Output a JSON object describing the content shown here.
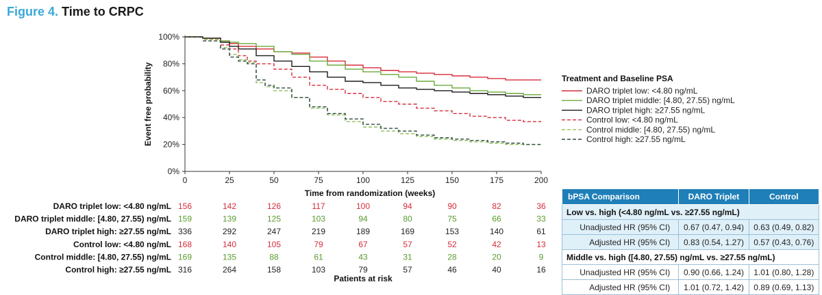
{
  "figure": {
    "number": "Figure 4.",
    "title": "Time to CRPC"
  },
  "chart_data": {
    "type": "line",
    "step": true,
    "xlabel": "Time from randomization (weeks)",
    "ylabel": "Event free probability",
    "xlim": [
      0,
      200
    ],
    "ylim": [
      0,
      100
    ],
    "xticks": [
      0,
      25,
      50,
      75,
      100,
      125,
      150,
      175,
      200
    ],
    "yticks": [
      0,
      20,
      40,
      60,
      80,
      100
    ],
    "ytick_labels": [
      "0%",
      "20%",
      "40%",
      "60%",
      "80%",
      "100%"
    ],
    "legend_title": "Treatment and Baseline PSA",
    "legend_position": "right",
    "series": [
      {
        "name": "DARO triplet low: <4.80 ng/mL",
        "color": "#d62b3a",
        "dash": "solid",
        "x": [
          0,
          10,
          20,
          25,
          30,
          40,
          50,
          60,
          70,
          80,
          90,
          100,
          110,
          120,
          130,
          140,
          150,
          160,
          170,
          180,
          190,
          200
        ],
        "y": [
          100,
          99,
          97,
          95,
          93,
          91,
          89,
          88,
          85,
          82,
          79,
          77,
          75,
          74,
          73,
          72,
          71,
          70,
          69,
          68,
          68,
          68
        ]
      },
      {
        "name": "DARO triplet middle: [4.80, 27.55) ng/mL",
        "color": "#6aaa3a",
        "dash": "solid",
        "x": [
          0,
          10,
          20,
          25,
          30,
          40,
          50,
          60,
          70,
          80,
          90,
          100,
          110,
          120,
          130,
          140,
          150,
          160,
          170,
          180,
          190,
          200
        ],
        "y": [
          100,
          99,
          97,
          96,
          95,
          93,
          89,
          87,
          82,
          79,
          76,
          74,
          72,
          70,
          67,
          64,
          62,
          60,
          59,
          58,
          57,
          57
        ]
      },
      {
        "name": "DARO triplet high: ≥27.55 ng/mL",
        "color": "#1a1a1a",
        "dash": "solid",
        "x": [
          0,
          10,
          20,
          25,
          30,
          40,
          50,
          60,
          70,
          80,
          90,
          100,
          110,
          120,
          130,
          140,
          150,
          160,
          170,
          180,
          190,
          200
        ],
        "y": [
          100,
          99,
          96,
          93,
          91,
          86,
          82,
          78,
          74,
          70,
          67,
          66,
          64,
          62,
          61,
          60,
          59,
          58,
          57,
          56,
          55,
          55
        ]
      },
      {
        "name": "Control low: <4.80 ng/mL",
        "color": "#d62b3a",
        "dash": "dashed",
        "x": [
          0,
          10,
          20,
          25,
          30,
          35,
          40,
          50,
          60,
          70,
          80,
          90,
          100,
          110,
          120,
          130,
          140,
          150,
          160,
          170,
          180,
          190,
          200
        ],
        "y": [
          100,
          98,
          94,
          91,
          86,
          82,
          80,
          76,
          70,
          64,
          61,
          58,
          55,
          52,
          50,
          47,
          45,
          43,
          41,
          40,
          38,
          37,
          37
        ]
      },
      {
        "name": "Control middle: [4.80, 27.55) ng/mL",
        "color": "#8fbe5a",
        "dash": "dashed",
        "x": [
          0,
          10,
          20,
          25,
          30,
          35,
          40,
          45,
          50,
          60,
          70,
          80,
          90,
          100,
          110,
          120,
          130,
          140,
          150,
          160,
          170,
          180,
          190,
          200
        ],
        "y": [
          100,
          98,
          92,
          87,
          83,
          81,
          66,
          63,
          60,
          55,
          47,
          42,
          37,
          33,
          30,
          28,
          26,
          24,
          23,
          22,
          21,
          20,
          20,
          19
        ]
      },
      {
        "name": "Control high: ≥27.55 ng/mL",
        "color": "#2a4a3a",
        "dash": "dashed",
        "x": [
          0,
          10,
          20,
          25,
          30,
          35,
          40,
          45,
          50,
          60,
          70,
          80,
          90,
          100,
          110,
          120,
          130,
          140,
          150,
          160,
          170,
          180,
          190,
          200
        ],
        "y": [
          100,
          97,
          91,
          85,
          82,
          80,
          68,
          64,
          62,
          55,
          48,
          43,
          39,
          35,
          32,
          30,
          27,
          25,
          24,
          23,
          22,
          21,
          20,
          20
        ]
      }
    ],
    "risk_table": {
      "title": "Patients at risk",
      "rows": [
        {
          "label": "DARO triplet low: <4.80 ng/mL",
          "color": "#d62b3a",
          "values": [
            "156",
            "142",
            "126",
            "117",
            "100",
            "94",
            "90",
            "82",
            "36"
          ]
        },
        {
          "label": "DARO triplet middle: [4.80, 27.55) ng/mL",
          "color": "#5a9a2e",
          "values": [
            "159",
            "139",
            "125",
            "103",
            "94",
            "80",
            "75",
            "66",
            "33"
          ]
        },
        {
          "label": "DARO triplet high: ≥27.55 ng/mL",
          "color": "#222222",
          "values": [
            "336",
            "292",
            "247",
            "219",
            "189",
            "169",
            "153",
            "140",
            "61"
          ]
        },
        {
          "label": "Control low: <4.80 ng/mL",
          "color": "#d62b3a",
          "values": [
            "168",
            "140",
            "105",
            "79",
            "67",
            "57",
            "52",
            "42",
            "13"
          ]
        },
        {
          "label": "Control middle: [4.80, 27.55) ng/mL",
          "color": "#5a9a2e",
          "values": [
            "169",
            "135",
            "88",
            "61",
            "43",
            "31",
            "28",
            "20",
            "9"
          ]
        },
        {
          "label": "Control high: ≥27.55 ng/mL",
          "color": "#222222",
          "values": [
            "316",
            "264",
            "158",
            "103",
            "79",
            "57",
            "46",
            "40",
            "16"
          ]
        }
      ]
    }
  },
  "bpsa_table": {
    "headers": [
      "bPSA Comparison",
      "DARO Triplet",
      "Control"
    ],
    "groups": [
      {
        "title": "Low vs. high (<4.80 ng/mL vs. ≥27.55 ng/mL)",
        "rows": [
          {
            "label": "Unadjusted HR (95% CI)",
            "daro": "0.67 (0.47, 0.94)",
            "control": "0.63 (0.49, 0.82)"
          },
          {
            "label": "Adjusted HR (95% CI)",
            "daro": "0.83 (0.54, 1.27)",
            "control": "0.57 (0.43, 0.76)"
          }
        ]
      },
      {
        "title": "Middle vs. high ([4.80, 27.55) ng/mL vs. ≥27.55 ng/mL)",
        "rows": [
          {
            "label": "Unadjusted HR (95% CI)",
            "daro": "0.90 (0.66, 1.24)",
            "control": "1.01 (0.80, 1.28)"
          },
          {
            "label": "Adjusted HR (95% CI)",
            "daro": "1.01 (0.72, 1.42)",
            "control": "0.89 (0.69, 1.13)"
          }
        ]
      }
    ]
  }
}
